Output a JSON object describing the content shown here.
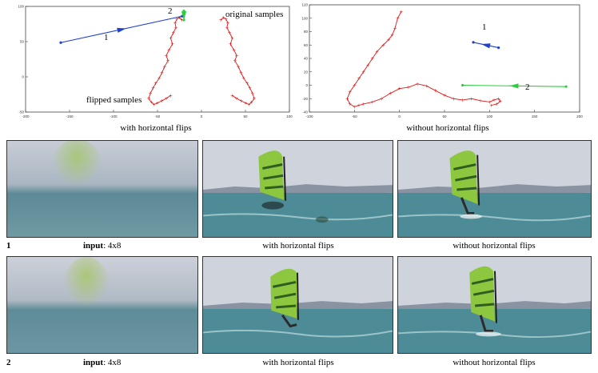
{
  "chart_data": [
    {
      "type": "line",
      "caption": "with horizontal flips",
      "xlim": [
        -200,
        100
      ],
      "ylim": [
        -40,
        100
      ],
      "x_ticks": [
        "-200",
        "-150",
        "-100",
        "-50",
        "0",
        "50",
        "100"
      ],
      "y_ticks": [
        "100",
        "50",
        "0",
        "-50"
      ],
      "annotations": [
        "original samples",
        "flipped samples"
      ],
      "motion_vectors": [
        {
          "label": "1",
          "color": "#1f3fd0",
          "from": [
            -160,
            52
          ],
          "to": [
            -22,
            87
          ]
        },
        {
          "label": "2",
          "color": "#2ecc40",
          "from": [
            -20,
            94
          ],
          "to": [
            -20,
            82
          ]
        }
      ],
      "series": [
        {
          "color": "#e01818",
          "x": [
            22,
            25,
            28,
            30,
            29,
            32,
            35,
            33,
            37,
            40,
            38,
            42,
            45,
            48,
            52,
            55,
            58,
            60,
            57,
            54,
            50,
            45,
            40,
            35
          ],
          "y": [
            82,
            85,
            83,
            78,
            72,
            65,
            58,
            50,
            42,
            35,
            28,
            20,
            12,
            5,
            -2,
            -8,
            -15,
            -22,
            -27,
            -30,
            -28,
            -25,
            -22,
            -18
          ]
        },
        {
          "color": "#e01818",
          "x": [
            -22,
            -25,
            -28,
            -30,
            -29,
            -32,
            -35,
            -33,
            -37,
            -40,
            -38,
            -42,
            -45,
            -48,
            -52,
            -55,
            -58,
            -60,
            -57,
            -54,
            -50,
            -45,
            -40,
            -35
          ],
          "y": [
            82,
            85,
            83,
            78,
            72,
            65,
            58,
            50,
            42,
            35,
            28,
            20,
            12,
            5,
            -2,
            -8,
            -15,
            -22,
            -27,
            -30,
            -28,
            -25,
            -22,
            -18
          ]
        }
      ]
    },
    {
      "type": "line",
      "caption": "without horizontal flips",
      "xlim": [
        -100,
        200
      ],
      "ylim": [
        -40,
        120
      ],
      "x_ticks": [
        "-100",
        "-50",
        "0",
        "50",
        "100",
        "150",
        "200"
      ],
      "y_ticks": [
        "120",
        "100",
        "80",
        "60",
        "40",
        "20",
        "0",
        "-20",
        "-40"
      ],
      "motion_vectors": [
        {
          "label": "1",
          "color": "#1f3fd0",
          "from": [
            110,
            56
          ],
          "to": [
            82,
            64
          ]
        },
        {
          "label": "2",
          "color": "#2ecc40",
          "from": [
            185,
            -2
          ],
          "to": [
            70,
            0
          ]
        }
      ],
      "series": [
        {
          "color": "#e01818",
          "x": [
            2,
            -2,
            -5,
            -8,
            -12,
            -18,
            -25,
            -30,
            -35,
            -40,
            -45,
            -50,
            -55,
            -58,
            -55,
            -50,
            -45,
            -40,
            -30,
            -20,
            -10,
            0,
            10,
            20,
            30,
            40,
            50,
            60,
            70,
            80,
            90,
            100,
            105,
            110,
            112,
            108,
            102
          ],
          "y": [
            110,
            100,
            85,
            75,
            68,
            60,
            50,
            40,
            30,
            20,
            10,
            0,
            -10,
            -20,
            -28,
            -32,
            -30,
            -28,
            -25,
            -20,
            -12,
            -5,
            -3,
            2,
            -1,
            -8,
            -15,
            -20,
            -22,
            -20,
            -23,
            -25,
            -22,
            -20,
            -24,
            -28,
            -30
          ]
        }
      ]
    }
  ],
  "figure": {
    "rows": [
      {
        "label": "1",
        "input_bold": "input",
        "input_rest": ": 4x8",
        "captions": [
          "with horizontal flips",
          "without horizontal flips"
        ]
      },
      {
        "label": "2",
        "input_bold": "input",
        "input_rest": ": 4x8",
        "captions": [
          "with horizontal flips",
          "without horizontal flips"
        ]
      }
    ]
  }
}
